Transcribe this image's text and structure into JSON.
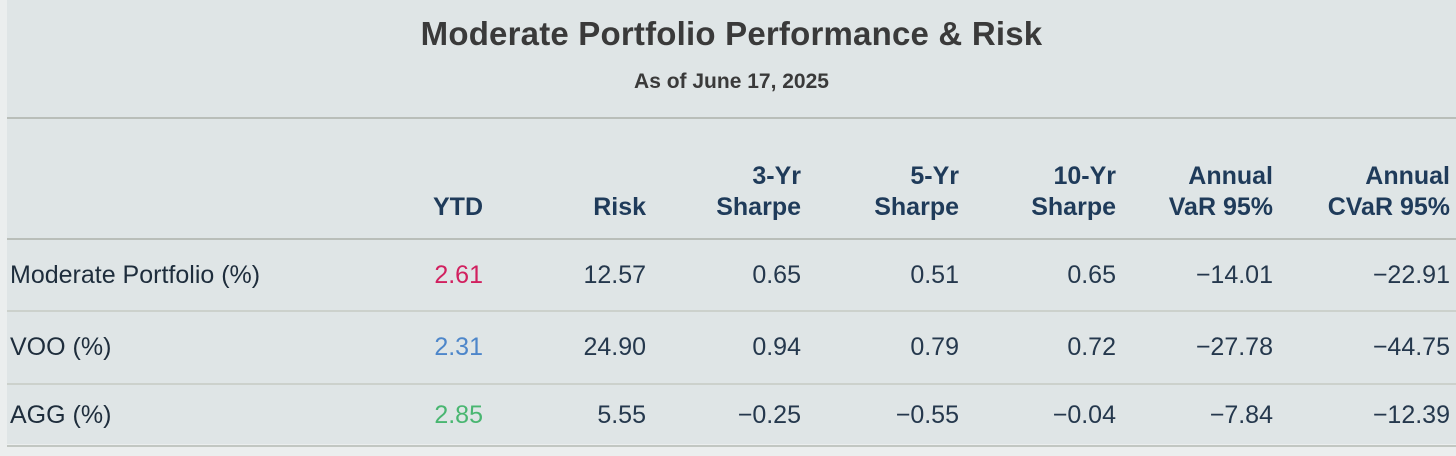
{
  "title": "Moderate Portfolio Performance & Risk",
  "subtitle": "As of June 17, 2025",
  "colors": {
    "background": "#dfe5e6",
    "page_margin": "#ebeeee",
    "divider_major": "#b9beb9",
    "divider_row": "#ccd1cc",
    "title_text": "#3a3a3a",
    "header_text": "#1f3b5a",
    "cell_text": "#25384d",
    "ytd_moderate": "#d1205f",
    "ytd_voo": "#4d86ca",
    "ytd_agg": "#49b671"
  },
  "table": {
    "headers": [
      {
        "line1": "",
        "line2": ""
      },
      {
        "line1": "",
        "line2": "YTD"
      },
      {
        "line1": "",
        "line2": "Risk"
      },
      {
        "line1": "3-Yr",
        "line2": "Sharpe"
      },
      {
        "line1": "5-Yr",
        "line2": "Sharpe"
      },
      {
        "line1": "10-Yr",
        "line2": "Sharpe"
      },
      {
        "line1": "Annual",
        "line2": "VaR 95%"
      },
      {
        "line1": "Annual",
        "line2": "CVaR 95%"
      }
    ],
    "rows": [
      {
        "label": "Moderate Portfolio (%)",
        "ytd": "2.61",
        "ytd_color": "#d1205f",
        "risk": "12.57",
        "sharpe3": "0.65",
        "sharpe5": "0.51",
        "sharpe10": "0.65",
        "var95": "−14.01",
        "cvar95": "−22.91"
      },
      {
        "label": "VOO (%)",
        "ytd": "2.31",
        "ytd_color": "#4d86ca",
        "risk": "24.90",
        "sharpe3": "0.94",
        "sharpe5": "0.79",
        "sharpe10": "0.72",
        "var95": "−27.78",
        "cvar95": "−44.75"
      },
      {
        "label": "AGG (%)",
        "ytd": "2.85",
        "ytd_color": "#49b671",
        "risk": "5.55",
        "sharpe3": "−0.25",
        "sharpe5": "−0.55",
        "sharpe10": "−0.04",
        "var95": "−7.84",
        "cvar95": "−12.39"
      }
    ]
  },
  "chart_data": {
    "type": "table",
    "title": "Moderate Portfolio Performance & Risk",
    "subtitle": "As of June 17, 2025",
    "columns": [
      "",
      "YTD",
      "Risk",
      "3-Yr Sharpe",
      "5-Yr Sharpe",
      "10-Yr Sharpe",
      "Annual VaR 95%",
      "Annual CVaR 95%"
    ],
    "rows": [
      [
        "Moderate Portfolio (%)",
        2.61,
        12.57,
        0.65,
        0.51,
        0.65,
        -14.01,
        -22.91
      ],
      [
        "VOO (%)",
        2.31,
        24.9,
        0.94,
        0.79,
        0.72,
        -27.78,
        -44.75
      ],
      [
        "AGG (%)",
        2.85,
        5.55,
        -0.25,
        -0.55,
        -0.04,
        -7.84,
        -12.39
      ]
    ],
    "ytd_value_colors": [
      "#d1205f",
      "#4d86ca",
      "#49b671"
    ],
    "layout": {
      "grid": "horizontal-dividers",
      "numeric_alignment": "right"
    }
  }
}
